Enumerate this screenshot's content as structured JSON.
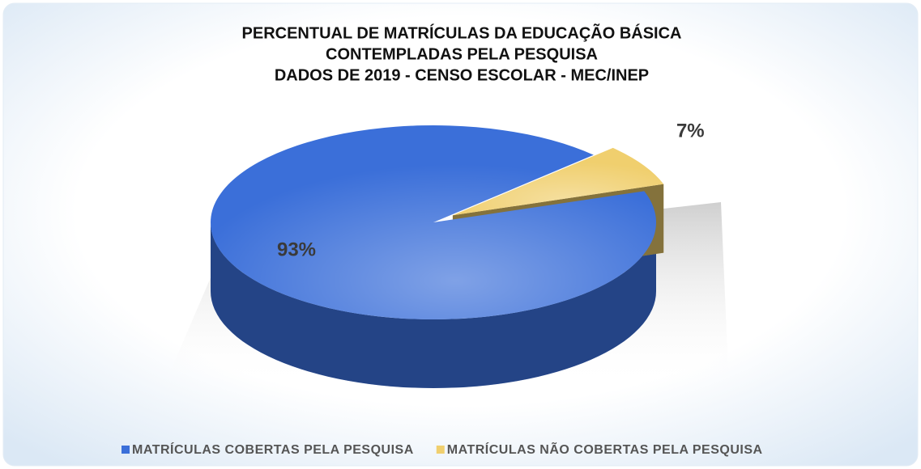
{
  "chart_data": {
    "type": "pie",
    "title": [
      "PERCENTUAL DE MATRÍCULAS DA EDUCAÇÃO BÁSICA",
      "CONTEMPLADAS PELA PESQUISA",
      "DADOS DE 2019 - CENSO ESCOLAR - MEC/INEP"
    ],
    "categories": [
      "MATRÍCULAS COBERTAS PELA PESQUISA",
      "MATRÍCULAS NÃO COBERTAS PELA PESQUISA"
    ],
    "values": [
      93,
      7
    ],
    "value_labels": [
      "93%",
      "7%"
    ],
    "colors": [
      "#3b6fd9",
      "#f0cf6e"
    ],
    "legend": "bottom"
  }
}
